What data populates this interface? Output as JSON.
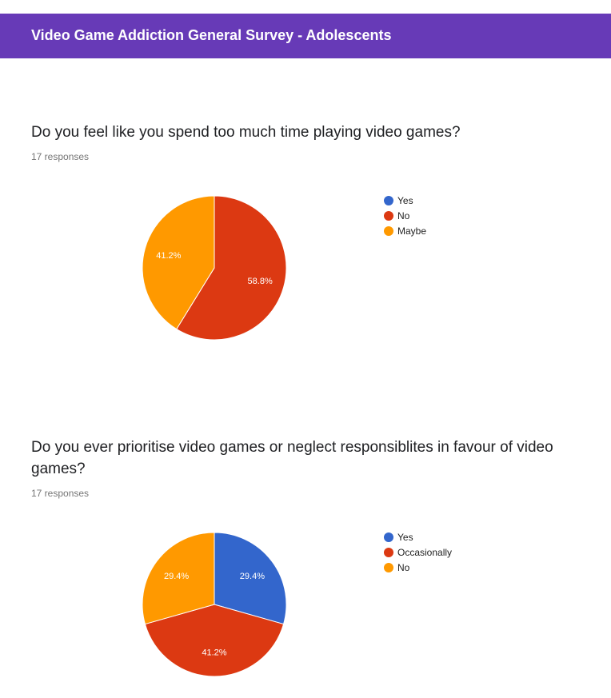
{
  "form": {
    "title": "Video Game Addiction General Survey - Adolescents",
    "header_color": "#673ab7"
  },
  "questions": [
    {
      "title": "Do you feel like you spend too much time playing video games?",
      "responses": "17 responses"
    },
    {
      "title": "Do you ever prioritise video games or neglect responsiblites in favour of video games?",
      "responses": "17 responses"
    }
  ],
  "chart_data": [
    {
      "type": "pie",
      "categories": [
        "Yes",
        "No",
        "Maybe"
      ],
      "values": [
        0,
        58.8,
        41.2
      ],
      "value_labels": [
        "",
        "58.8%",
        "41.2%"
      ],
      "colors": [
        "#3366cc",
        "#dc3912",
        "#ff9900"
      ],
      "legend_position": "right"
    },
    {
      "type": "pie",
      "categories": [
        "Yes",
        "Occasionally",
        "No"
      ],
      "values": [
        29.4,
        41.2,
        29.4
      ],
      "value_labels": [
        "29.4%",
        "41.2%",
        "29.4%"
      ],
      "colors": [
        "#3366cc",
        "#dc3912",
        "#ff9900"
      ],
      "legend_position": "right"
    }
  ]
}
